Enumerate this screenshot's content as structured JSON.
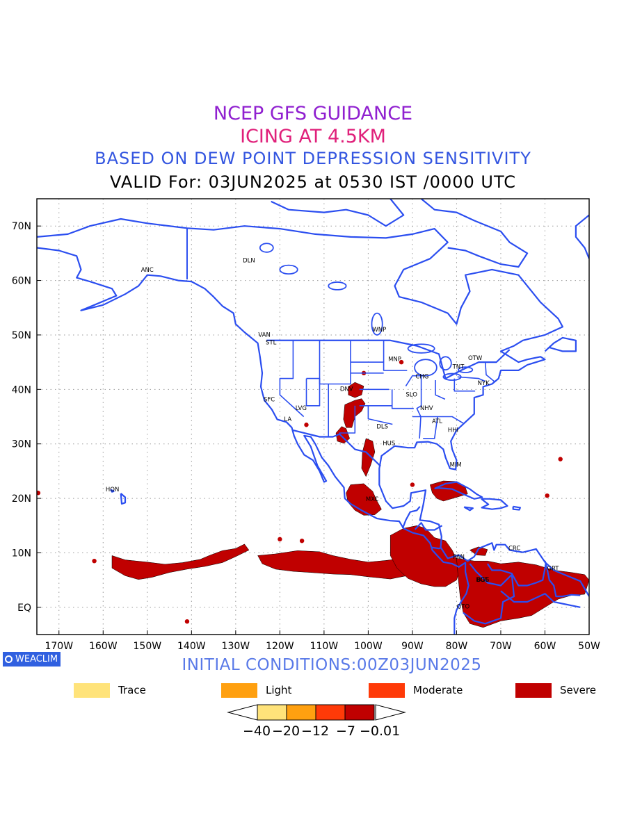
{
  "titles": {
    "line1": "NCEP GFS GUIDANCE",
    "line2": "ICING AT 4.5KM",
    "line3": "BASED ON DEW POINT DEPRESSION SENSITIVITY",
    "line4": "VALID For: 03JUN2025 at 0530 IST /0000 UTC",
    "colors": {
      "line1": "#9020d0",
      "line2": "#e0207a",
      "line3": "#3456e0",
      "line4": "#000000"
    }
  },
  "map": {
    "lat_labels": [
      "70N",
      "60N",
      "50N",
      "40N",
      "30N",
      "20N",
      "10N",
      "EQ"
    ],
    "lon_labels": [
      "170W",
      "160W",
      "150W",
      "140W",
      "130W",
      "120W",
      "110W",
      "100W",
      "90W",
      "80W",
      "70W",
      "60W",
      "50W"
    ],
    "lon_range": [
      -175,
      -50
    ],
    "lat_range": [
      -5,
      75
    ],
    "coastline_color": "#2b4ef0",
    "stations": [
      "ANC",
      "DLN",
      "VAN",
      "STL",
      "WNP",
      "MNP",
      "OTW",
      "TNT",
      "CHG",
      "NYK",
      "DNV",
      "SFC",
      "LVG",
      "LA",
      "SLO",
      "NHV",
      "ATL",
      "DLS",
      "HHI",
      "HUS",
      "MIM",
      "HON",
      "MXC",
      "BOG",
      "PAN",
      "CRC",
      "GRT",
      "BGT",
      "QTO"
    ],
    "icing_color": "#c00000"
  },
  "initial_conditions": {
    "text": "INITIAL CONDITIONS:00Z03JUN2025",
    "color": "#5a7ae8"
  },
  "badge": {
    "text": "WEACLIM",
    "color": "#3060e0",
    "icon": "circle-ring-icon"
  },
  "legend": [
    {
      "label": "Trace",
      "color": "#ffe37a"
    },
    {
      "label": "Light",
      "color": "#ffa010"
    },
    {
      "label": "Moderate",
      "color": "#ff3a08"
    },
    {
      "label": "Severe",
      "color": "#c00000"
    }
  ],
  "colorbar": {
    "labels": [
      "−40",
      "−20",
      "−12",
      "−7",
      "−0.01"
    ],
    "colors": [
      "#ffe37a",
      "#ffa010",
      "#ff3a08",
      "#c00000"
    ]
  }
}
